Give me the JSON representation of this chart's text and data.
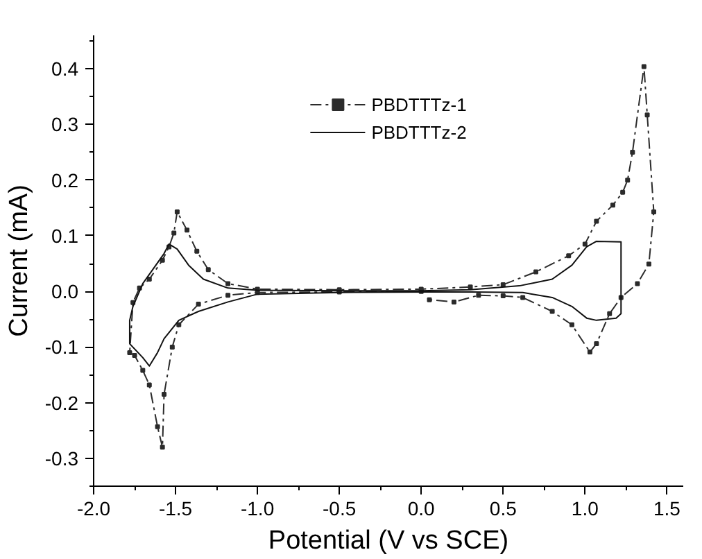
{
  "chart_data": {
    "type": "line",
    "xlabel": "Potential (V vs SCE)",
    "ylabel": "Current (mA)",
    "xlim": [
      -2.0,
      1.6
    ],
    "ylim": [
      -0.35,
      0.46
    ],
    "xticks": [
      {
        "value": -2,
        "label": "-2.0"
      },
      -1.5,
      {
        "value": -1,
        "label": "-1.0"
      },
      -0.5,
      {
        "value": 0,
        "label": "0.0"
      },
      0.5,
      {
        "value": 1,
        "label": "1.0"
      },
      1.5
    ],
    "yticks": [
      -0.3,
      -0.2,
      -0.1,
      {
        "value": 0,
        "label": "0.0"
      },
      0.1,
      0.2,
      0.3,
      0.4
    ],
    "grid": false,
    "legend": "top",
    "series": [
      {
        "name": "PBDTTTz-1",
        "color": "#2b2b2b",
        "line_style": "dashed",
        "marker": "square",
        "x": [
          0.0,
          -0.5,
          -1.0,
          -1.18,
          -1.36,
          -1.48,
          -1.52,
          -1.57,
          -1.58,
          -1.61,
          -1.66,
          -1.7,
          -1.75,
          -1.78,
          -1.76,
          -1.72,
          -1.66,
          -1.58,
          -1.54,
          -1.51,
          -1.49,
          -1.43,
          -1.37,
          -1.3,
          -1.18,
          -1.0,
          -0.5,
          0.0,
          0.3,
          0.5,
          0.7,
          0.9,
          1.0,
          1.07,
          1.17,
          1.23,
          1.26,
          1.29,
          1.36,
          1.38,
          1.42,
          1.39,
          1.32,
          1.22,
          1.15,
          1.07,
          1.03,
          0.92,
          0.8,
          0.62,
          0.5,
          0.35,
          0.2,
          0.05
        ],
        "values": [
          0.0,
          -0.001,
          -0.002,
          -0.007,
          -0.023,
          -0.06,
          -0.1,
          -0.185,
          -0.28,
          -0.243,
          -0.168,
          -0.142,
          -0.115,
          -0.11,
          -0.02,
          0.006,
          0.022,
          0.056,
          0.08,
          0.105,
          0.143,
          0.11,
          0.072,
          0.039,
          0.014,
          0.004,
          0.003,
          0.004,
          0.008,
          0.012,
          0.035,
          0.064,
          0.085,
          0.126,
          0.155,
          0.178,
          0.2,
          0.25,
          0.404,
          0.317,
          0.143,
          0.049,
          0.014,
          -0.011,
          -0.04,
          -0.094,
          -0.109,
          -0.06,
          -0.036,
          -0.011,
          -0.008,
          -0.007,
          -0.019,
          -0.015
        ]
      },
      {
        "name": "PBDTTTz-2",
        "color": "#111111",
        "line_style": "solid",
        "marker": "none",
        "x": [
          0.05,
          -0.5,
          -1.0,
          -1.18,
          -1.36,
          -1.48,
          -1.57,
          -1.61,
          -1.66,
          -1.7,
          -1.78,
          -1.78,
          -1.76,
          -1.7,
          -1.63,
          -1.57,
          -1.54,
          -1.49,
          -1.42,
          -1.33,
          -1.18,
          -1.0,
          -0.5,
          0.0,
          0.3,
          0.6,
          0.8,
          0.92,
          1.01,
          1.07,
          1.22,
          1.22,
          1.19,
          1.07,
          1.01,
          0.92,
          0.8,
          0.62,
          0.3,
          0.0
        ],
        "values": [
          -0.001,
          -0.002,
          -0.005,
          -0.019,
          -0.036,
          -0.052,
          -0.085,
          -0.11,
          -0.134,
          -0.119,
          -0.094,
          -0.052,
          -0.027,
          0.014,
          0.043,
          0.068,
          0.085,
          0.076,
          0.047,
          0.022,
          0.006,
          0.002,
          0.001,
          0.001,
          0.003,
          0.01,
          0.022,
          0.047,
          0.08,
          0.09,
          0.089,
          -0.04,
          -0.048,
          -0.052,
          -0.048,
          -0.027,
          -0.011,
          -0.002,
          -0.001,
          -0.001
        ]
      }
    ]
  }
}
